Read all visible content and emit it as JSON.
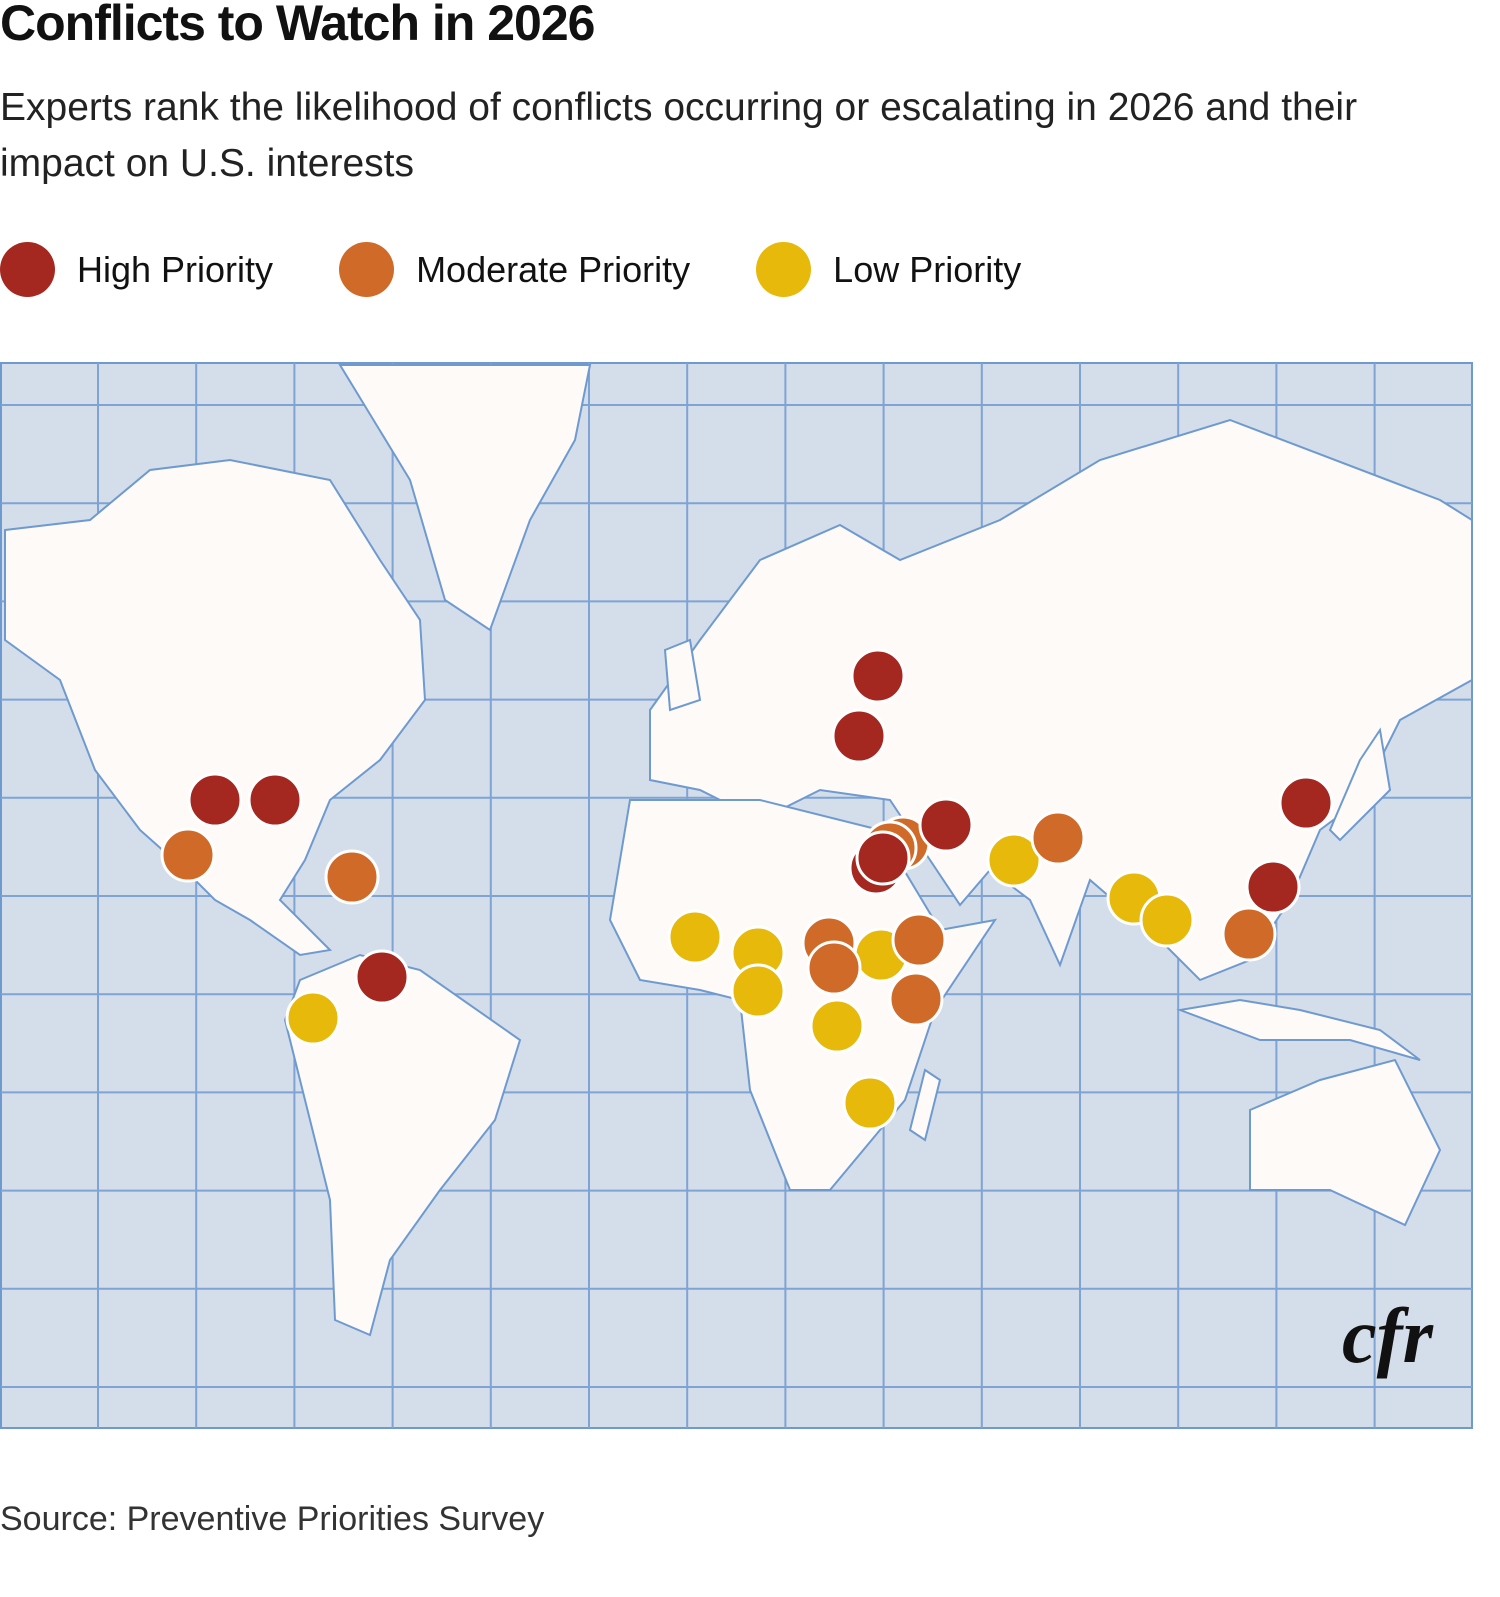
{
  "title": "Conflicts to Watch in 2026",
  "subtitle": "Experts rank the likelihood of conflicts occurring or escalating in 2026 and their impact on U.S. interests",
  "legend": [
    {
      "label": "High Priority",
      "color": "#a52820"
    },
    {
      "label": "Moderate Priority",
      "color": "#d06a28"
    },
    {
      "label": "Low Priority",
      "color": "#e6b90a"
    }
  ],
  "map": {
    "ocean_color": "#d4deea",
    "land_color": "#fdfaf7",
    "border_color": "#6e9ad0",
    "marker_counts": {
      "high": 10,
      "moderate": 10,
      "low": 10
    }
  },
  "logo": "cfr",
  "source": "Source: Preventive Priorities Survey"
}
